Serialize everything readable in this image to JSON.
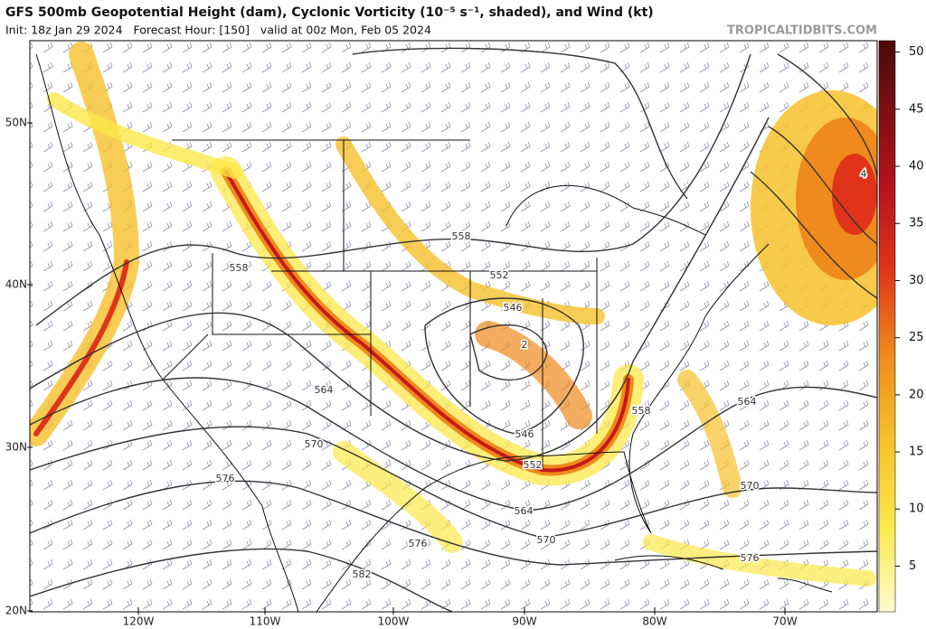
{
  "header": {
    "title": "GFS 500mb Geopotential Height (dam), Cyclonic Vorticity (10⁻⁵ s⁻¹, shaded), and Wind (kt)",
    "subtitle": "Init: 18z Jan 29 2024   Forecast Hour: [150]   valid at 00z Mon, Feb 05 2024",
    "site": "TROPICALTIDBITS.COM"
  },
  "lat_labels": [
    "50N",
    "40N",
    "30N",
    "20N"
  ],
  "lon_labels": [
    "120W",
    "110W",
    "100W",
    "90W",
    "80W",
    "70W"
  ],
  "contour_labels": [
    "558",
    "558",
    "552",
    "546",
    "2",
    "564",
    "570",
    "546",
    "552",
    "558",
    "564",
    "576",
    "564",
    "570",
    "570",
    "576",
    "576",
    "582",
    "4"
  ],
  "colorbar": {
    "vlim": [
      1,
      51
    ],
    "ticks": [
      5,
      10,
      15,
      20,
      25,
      30,
      35,
      40,
      45,
      50
    ]
  }
}
